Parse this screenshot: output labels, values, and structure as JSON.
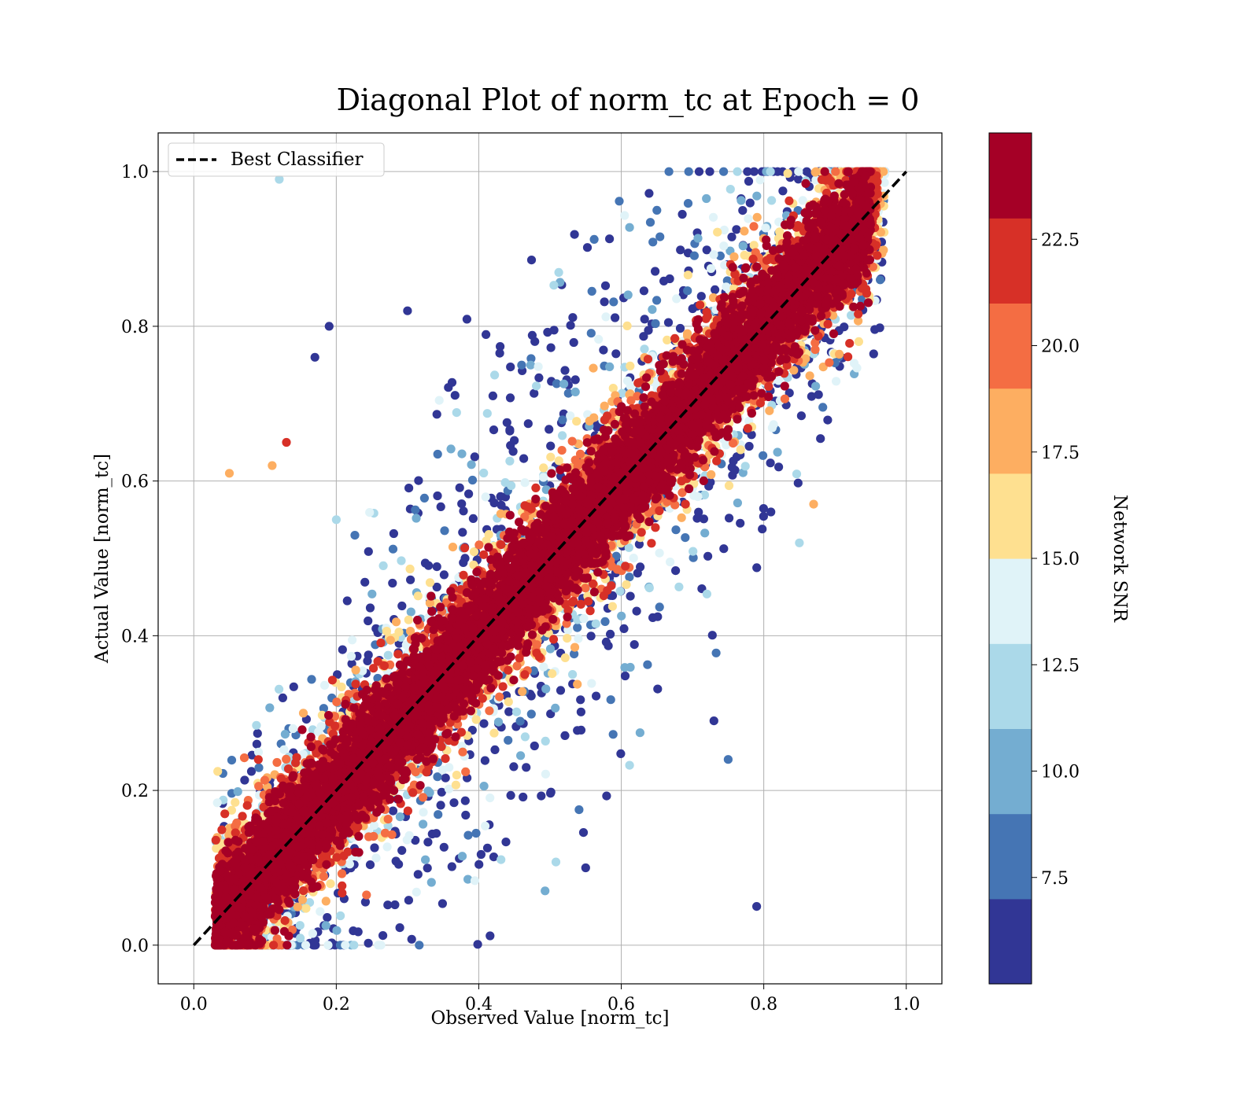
{
  "chart_data": {
    "type": "scatter",
    "title": "Diagonal Plot of norm_tc at Epoch = 0",
    "xlabel": "Observed Value [norm_tc]",
    "ylabel": "Actual Value [norm_tc]",
    "xlim": [
      -0.05,
      1.05
    ],
    "ylim": [
      -0.05,
      1.05
    ],
    "xticks": [
      "0.0",
      "0.2",
      "0.4",
      "0.6",
      "0.8",
      "1.0"
    ],
    "yticks": [
      "0.0",
      "0.2",
      "0.4",
      "0.6",
      "0.8",
      "1.0"
    ],
    "grid": true,
    "legend": {
      "placement": "top-left",
      "entries": [
        "Best Classifier"
      ]
    },
    "reference_line": {
      "name": "Best Classifier",
      "style": "dashed",
      "color": "#000000",
      "x": [
        0.0,
        1.0
      ],
      "y": [
        0.0,
        1.0
      ]
    },
    "colorbar": {
      "label": "Network SNR",
      "range": [
        5.0,
        25.0
      ],
      "ticks": [
        "7.5",
        "10.0",
        "12.5",
        "15.0",
        "17.5",
        "20.0",
        "22.5"
      ],
      "colors": [
        "#313695",
        "#4575b4",
        "#74add1",
        "#abd9e9",
        "#e0f3f8",
        "#fee090",
        "#fdae61",
        "#f46d43",
        "#d73027",
        "#a50026"
      ]
    },
    "series": [
      {
        "points_sample": [
          [
            0.05,
            0.02,
            24
          ],
          [
            0.1,
            0.12,
            23
          ],
          [
            0.2,
            0.19,
            24
          ],
          [
            0.3,
            0.33,
            23
          ],
          [
            0.4,
            0.41,
            24
          ],
          [
            0.5,
            0.48,
            23
          ],
          [
            0.6,
            0.61,
            24
          ],
          [
            0.7,
            0.72,
            23
          ],
          [
            0.8,
            0.79,
            24
          ],
          [
            0.9,
            0.91,
            23
          ],
          [
            0.95,
            0.98,
            24
          ],
          [
            0.3,
            0.82,
            6
          ],
          [
            0.55,
            0.1,
            6
          ],
          [
            0.65,
            0.95,
            7
          ],
          [
            0.2,
            0.55,
            12
          ],
          [
            0.05,
            0.61,
            18
          ],
          [
            0.11,
            0.62,
            17
          ],
          [
            0.13,
            0.65,
            22
          ],
          [
            0.85,
            0.52,
            11
          ],
          [
            0.81,
            0.56,
            6
          ],
          [
            0.87,
            0.57,
            18
          ],
          [
            0.73,
            0.29,
            6
          ],
          [
            0.75,
            0.24,
            8
          ],
          [
            0.79,
            0.05,
            6
          ],
          [
            0.12,
            0.99,
            11
          ],
          [
            0.19,
            0.8,
            6
          ],
          [
            0.17,
            0.76,
            6
          ]
        ]
      }
    ]
  }
}
